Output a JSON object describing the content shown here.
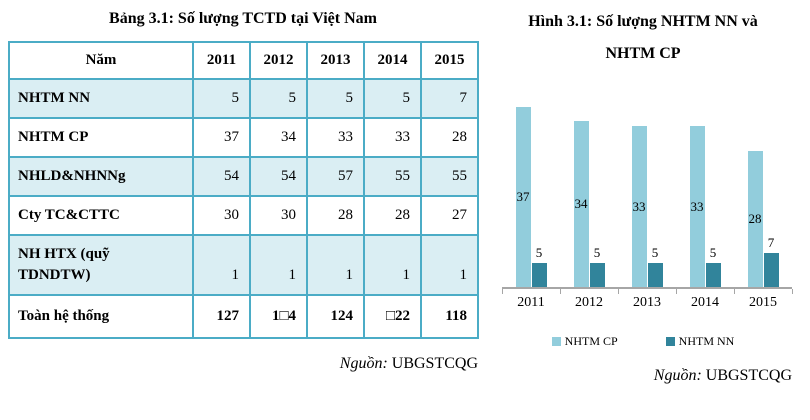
{
  "table_panel": {
    "title": "Bảng 3.1: Số lượng TCTD tại Việt Nam",
    "source_label": "Nguồn:",
    "source_value": "UBGSTCQG",
    "table": {
      "header": [
        "Năm",
        "2011",
        "2012",
        "2013",
        "2014",
        "2015"
      ],
      "rows": [
        {
          "label": "NHTM NN",
          "values": [
            "5",
            "5",
            "5",
            "5",
            "7"
          ]
        },
        {
          "label": "NHTM CP",
          "values": [
            "37",
            "34",
            "33",
            "33",
            "28"
          ]
        },
        {
          "label": "NHLD&NHNNg",
          "values": [
            "54",
            "54",
            "57",
            "55",
            "55"
          ]
        },
        {
          "label": "Cty TC&CTTC",
          "values": [
            "30",
            "30",
            "28",
            "28",
            "27"
          ]
        },
        {
          "label": "NH HTX (quỹ\nTDNDTW)",
          "values": [
            "1",
            "1",
            "1",
            "1",
            "1"
          ]
        },
        {
          "label": "Toàn hệ thống",
          "values": [
            "127",
            "1□4",
            "124",
            "□22",
            "118"
          ]
        }
      ]
    },
    "colors": {
      "table_border": "#4BACC6",
      "row_shade": "#DAEEF3"
    }
  },
  "chart_panel": {
    "title_line1": "Hình 3.1: Số lượng NHTM NN và",
    "title_line2": "NHTM CP",
    "source_label": "Nguồn:",
    "source_value": "UBGSTCQG"
  },
  "chart_data": [
    {
      "type": "bar",
      "title": "Hình 3.1: Số lượng NHTM NN và NHTM CP",
      "categories": [
        "2011",
        "2012",
        "2013",
        "2014",
        "2015"
      ],
      "series": [
        {
          "name": "NHTM CP",
          "color": "#92CDDC",
          "values": [
            37,
            34,
            33,
            33,
            28
          ],
          "label_position": "inside-center"
        },
        {
          "name": "NHTM NN",
          "color": "#31849B",
          "values": [
            5,
            5,
            5,
            5,
            7
          ],
          "label_position": "outside-end"
        }
      ],
      "ylim": [
        0,
        40
      ],
      "grid": false,
      "legend_position": "bottom",
      "axis_color": "#A6A6A6",
      "source": "Nguồn: UBGSTCQG"
    },
    {
      "type": "table",
      "title": "Bảng 3.1: Số lượng TCTD tại Việt Nam",
      "columns": [
        "Năm",
        "2011",
        "2012",
        "2013",
        "2014",
        "2015"
      ],
      "rows": [
        [
          "NHTM NN",
          5,
          5,
          5,
          5,
          7
        ],
        [
          "NHTM CP",
          37,
          34,
          33,
          33,
          28
        ],
        [
          "NHLD&NHNNg",
          54,
          54,
          57,
          55,
          55
        ],
        [
          "Cty TC&CTTC",
          30,
          30,
          28,
          28,
          27
        ],
        [
          "NH HTX (quỹ TDNDTW)",
          1,
          1,
          1,
          1,
          1
        ],
        [
          "Toàn hệ thống",
          "127",
          "1□4",
          "124",
          "□22",
          "118"
        ]
      ],
      "source": "Nguồn: UBGSTCQG"
    }
  ]
}
